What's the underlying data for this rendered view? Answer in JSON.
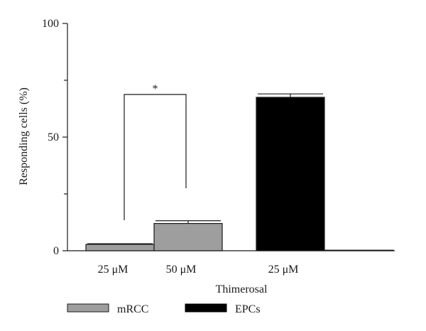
{
  "chart_data": {
    "type": "bar",
    "title": "",
    "xlabel": "Thimerosal",
    "ylabel": "Responding cells (%)",
    "ylim": [
      0,
      100
    ],
    "yticks": [
      "0",
      "50",
      "100"
    ],
    "categories": [
      "25 μM",
      "50 μM",
      "25 μM",
      ""
    ],
    "bars": [
      {
        "category": "25 μM",
        "series": "mRCC",
        "value": 2.8,
        "error": 0.3
      },
      {
        "category": "50 μM",
        "series": "mRCC",
        "value": 12,
        "error": 1.2
      },
      {
        "category": "25 μM",
        "series": "EPCs",
        "value": 67.5,
        "error": 1.5
      },
      {
        "category": "",
        "series": "EPCs",
        "value": 0.2,
        "error": 0
      }
    ],
    "series": [
      {
        "name": "mRCC",
        "color": "#9e9e9e"
      },
      {
        "name": "EPCs",
        "color": "#000000"
      }
    ],
    "annotations": [
      {
        "text": "*",
        "between": [
          0,
          1
        ]
      }
    ],
    "legend": "bottom",
    "grid": false
  }
}
